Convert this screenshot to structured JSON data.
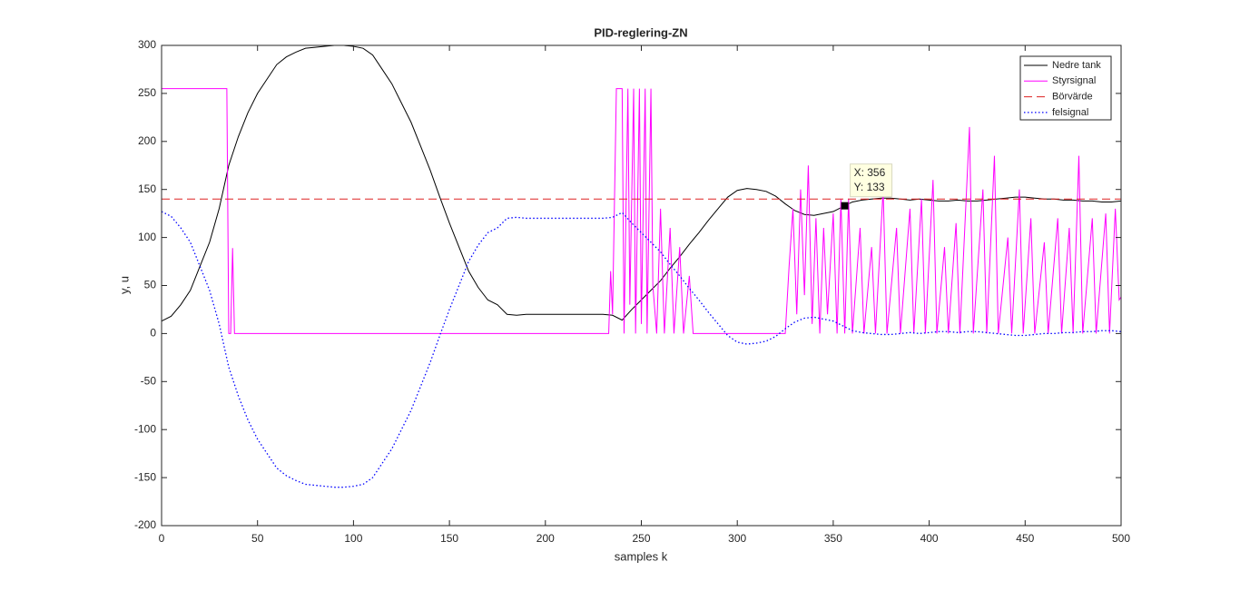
{
  "chart_data": {
    "type": "line",
    "title": "PID-reglering-ZN",
    "xlabel": "samples k",
    "ylabel": "y, u",
    "x": [
      0,
      5,
      10,
      15,
      20,
      25,
      30,
      35,
      40,
      45,
      50,
      55,
      60,
      65,
      70,
      75,
      80,
      85,
      90,
      95,
      100,
      105,
      110,
      115,
      120,
      125,
      130,
      135,
      140,
      145,
      150,
      155,
      160,
      165,
      170,
      175,
      180,
      185,
      190,
      195,
      200,
      205,
      210,
      215,
      220,
      225,
      230,
      235,
      240,
      245,
      250,
      255,
      260,
      265,
      270,
      275,
      280,
      285,
      290,
      295,
      300,
      305,
      310,
      315,
      320,
      325,
      330,
      335,
      340,
      345,
      350,
      355,
      360,
      365,
      370,
      375,
      380,
      385,
      390,
      395,
      400,
      405,
      410,
      415,
      420,
      425,
      430,
      435,
      440,
      445,
      450,
      455,
      460,
      465,
      470,
      475,
      480,
      485,
      490,
      495,
      500
    ],
    "series": [
      {
        "name": "Nedre tank",
        "color": "#000000",
        "style": "solid",
        "values": [
          13,
          18,
          30,
          45,
          70,
          95,
          130,
          175,
          205,
          230,
          250,
          265,
          280,
          288,
          293,
          297,
          298,
          299,
          300,
          300,
          299,
          297,
          290,
          275,
          260,
          240,
          220,
          195,
          170,
          142,
          115,
          90,
          65,
          48,
          35,
          30,
          20,
          19,
          20,
          20,
          20,
          20,
          20,
          20,
          20,
          20,
          20,
          19,
          14,
          25,
          35,
          45,
          55,
          68,
          80,
          93,
          105,
          118,
          130,
          142,
          149,
          151,
          150,
          148,
          143,
          135,
          128,
          124,
          123,
          125,
          127,
          132,
          137,
          139,
          140,
          141,
          141,
          140,
          139,
          140,
          139,
          138,
          138,
          139,
          138,
          138,
          139,
          140,
          141,
          142,
          142,
          141,
          140,
          140,
          139,
          139,
          138,
          138,
          137,
          137,
          138
        ]
      },
      {
        "name": "Styrsignal",
        "color": "#ff00ff",
        "style": "solid",
        "x": [
          0,
          34,
          35,
          36,
          37,
          38,
          233,
          234,
          235,
          237,
          240,
          241,
          243,
          244,
          246,
          247,
          249,
          250,
          252,
          253,
          255,
          256,
          258,
          260,
          262,
          265,
          267,
          270,
          272,
          275,
          277,
          325,
          327,
          329,
          331,
          333,
          335,
          337,
          339,
          341,
          343,
          345,
          347,
          350,
          352,
          354,
          356,
          358,
          360,
          364,
          366,
          370,
          372,
          376,
          378,
          383,
          385,
          390,
          392,
          396,
          398,
          402,
          404,
          408,
          410,
          414,
          416,
          421,
          423,
          428,
          430,
          434,
          436,
          441,
          443,
          447,
          449,
          453,
          455,
          460,
          462,
          467,
          469,
          473,
          475,
          478,
          480,
          485,
          487,
          492,
          494,
          497,
          499,
          500
        ],
        "values": [
          255,
          255,
          0,
          0,
          89,
          0,
          0,
          65,
          20,
          255,
          255,
          0,
          255,
          30,
          255,
          0,
          255,
          10,
          255,
          0,
          255,
          50,
          0,
          130,
          0,
          110,
          0,
          90,
          0,
          60,
          0,
          0,
          70,
          130,
          20,
          150,
          40,
          175,
          10,
          120,
          0,
          110,
          20,
          125,
          0,
          140,
          0,
          140,
          0,
          110,
          0,
          90,
          0,
          150,
          0,
          110,
          0,
          130,
          0,
          140,
          0,
          160,
          0,
          90,
          0,
          115,
          0,
          215,
          0,
          150,
          0,
          185,
          0,
          100,
          0,
          150,
          0,
          120,
          0,
          95,
          0,
          120,
          0,
          110,
          0,
          185,
          0,
          120,
          0,
          125,
          0,
          130,
          35,
          38
        ]
      },
      {
        "name": "Börvärde",
        "color": "#dd2222",
        "style": "dashed",
        "x": [
          0,
          500
        ],
        "values": [
          140,
          140
        ]
      },
      {
        "name": "felsignal",
        "color": "#0000ff",
        "style": "dotted",
        "values": [
          127,
          122,
          110,
          95,
          70,
          45,
          10,
          -35,
          -65,
          -90,
          -110,
          -125,
          -140,
          -148,
          -153,
          -157,
          -158,
          -159,
          -160,
          -160,
          -159,
          -157,
          -150,
          -135,
          -120,
          -100,
          -80,
          -55,
          -30,
          -2,
          25,
          50,
          75,
          92,
          105,
          110,
          120,
          121,
          120,
          120,
          120,
          120,
          120,
          120,
          120,
          120,
          120,
          121,
          126,
          115,
          105,
          95,
          85,
          72,
          60,
          47,
          35,
          22,
          10,
          -2,
          -9,
          -11,
          -10,
          -8,
          -3,
          5,
          12,
          16,
          17,
          15,
          13,
          8,
          3,
          1,
          0,
          -1,
          -1,
          0,
          1,
          0,
          1,
          2,
          2,
          1,
          2,
          2,
          1,
          0,
          -1,
          -2,
          -2,
          -1,
          0,
          0,
          1,
          1,
          2,
          2,
          3,
          3,
          2
        ]
      }
    ],
    "xlim": [
      0,
      500
    ],
    "xticks": [
      0,
      50,
      100,
      150,
      200,
      250,
      300,
      350,
      400,
      450,
      500
    ],
    "ylim": [
      -200,
      300
    ],
    "yticks": [
      -200,
      -150,
      -100,
      -50,
      0,
      50,
      100,
      150,
      200,
      250,
      300
    ],
    "legend": "northeast",
    "datatip": {
      "x": 356,
      "y": 133,
      "lines": [
        "X: 356",
        "Y: 133"
      ]
    }
  }
}
